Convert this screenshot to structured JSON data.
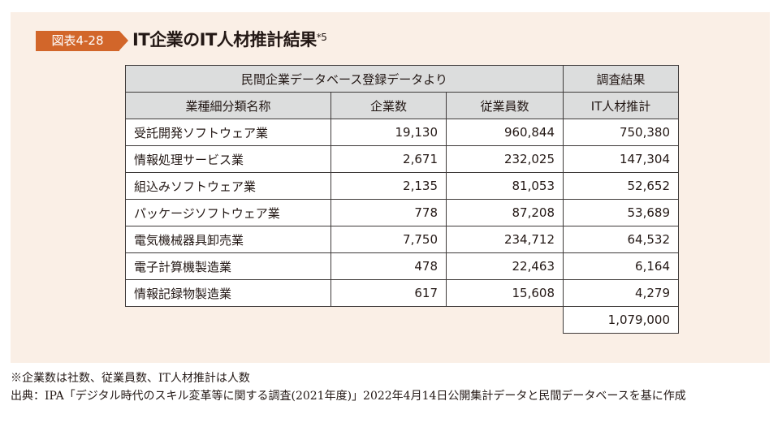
{
  "figure": {
    "badge": "図表4-28",
    "title": "IT企業のIT人材推計結果",
    "title_footnote": "*5",
    "accent_color": "#d2662a",
    "panel_color": "#faefe6",
    "header_fill": "#dcdddd"
  },
  "table": {
    "group_headers": [
      {
        "label": "民間企業データベース登録データより",
        "colspan": 3
      },
      {
        "label": "調査結果",
        "colspan": 1
      }
    ],
    "columns": [
      "業種細分類名称",
      "企業数",
      "従業員数",
      "IT人材推計"
    ],
    "rows": [
      {
        "name": "受託開発ソフトウェア業",
        "companies": "19,130",
        "employees": "960,844",
        "it_staff": "750,380"
      },
      {
        "name": "情報処理サービス業",
        "companies": "2,671",
        "employees": "232,025",
        "it_staff": "147,304"
      },
      {
        "name": "組込みソフトウェア業",
        "companies": "2,135",
        "employees": "81,053",
        "it_staff": "52,652"
      },
      {
        "name": "パッケージソフトウェア業",
        "companies": "778",
        "employees": "87,208",
        "it_staff": "53,689"
      },
      {
        "name": "電気機械器具卸売業",
        "companies": "7,750",
        "employees": "234,712",
        "it_staff": "64,532"
      },
      {
        "name": "電子計算機製造業",
        "companies": "478",
        "employees": "22,463",
        "it_staff": "6,164"
      },
      {
        "name": "情報記録物製造業",
        "companies": "617",
        "employees": "15,608",
        "it_staff": "4,279"
      }
    ],
    "total": "1,079,000"
  },
  "notes": {
    "note": "※企業数は社数、従業員数、IT人材推計は人数",
    "source_label": "出典：",
    "source_text": "IPA「デジタル時代のスキル変革等に関する調査(2021年度)」2022年4月14日公開集計データと民間データベースを基に作成"
  }
}
